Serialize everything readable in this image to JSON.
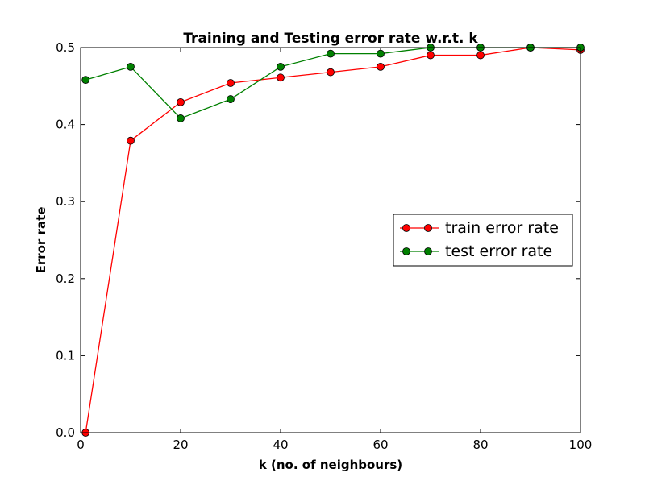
{
  "chart_data": {
    "type": "line",
    "title": "Training and Testing error rate w.r.t. k",
    "xlabel": "k (no. of neighbours)",
    "ylabel": "Error rate",
    "xlim": [
      0,
      100
    ],
    "ylim": [
      0.0,
      0.5
    ],
    "xticks": [
      0,
      20,
      40,
      60,
      80,
      100
    ],
    "yticks": [
      0.0,
      0.1,
      0.2,
      0.3,
      0.4,
      0.5
    ],
    "xtick_labels": [
      "0",
      "20",
      "40",
      "60",
      "80",
      "100"
    ],
    "ytick_labels": [
      "0.0",
      "0.1",
      "0.2",
      "0.3",
      "0.4",
      "0.5"
    ],
    "grid": false,
    "legend_position": "center-right",
    "series": [
      {
        "name": "train error rate",
        "color": "#ff0000",
        "marker": "circle",
        "points": [
          {
            "x": 1,
            "y": 0.0
          },
          {
            "x": 10,
            "y": 0.379
          },
          {
            "x": 20,
            "y": 0.429
          },
          {
            "x": 30,
            "y": 0.454
          },
          {
            "x": 40,
            "y": 0.461
          },
          {
            "x": 50,
            "y": 0.468
          },
          {
            "x": 60,
            "y": 0.475
          },
          {
            "x": 70,
            "y": 0.49
          },
          {
            "x": 80,
            "y": 0.49
          },
          {
            "x": 90,
            "y": 0.5
          },
          {
            "x": 100,
            "y": 0.497
          }
        ]
      },
      {
        "name": "test error rate",
        "color": "#008000",
        "marker": "circle",
        "points": [
          {
            "x": 1,
            "y": 0.458
          },
          {
            "x": 10,
            "y": 0.475
          },
          {
            "x": 20,
            "y": 0.408
          },
          {
            "x": 30,
            "y": 0.433
          },
          {
            "x": 40,
            "y": 0.475
          },
          {
            "x": 50,
            "y": 0.492
          },
          {
            "x": 60,
            "y": 0.492
          },
          {
            "x": 70,
            "y": 0.5
          },
          {
            "x": 80,
            "y": 0.5
          },
          {
            "x": 90,
            "y": 0.5
          },
          {
            "x": 100,
            "y": 0.5
          }
        ]
      }
    ]
  }
}
